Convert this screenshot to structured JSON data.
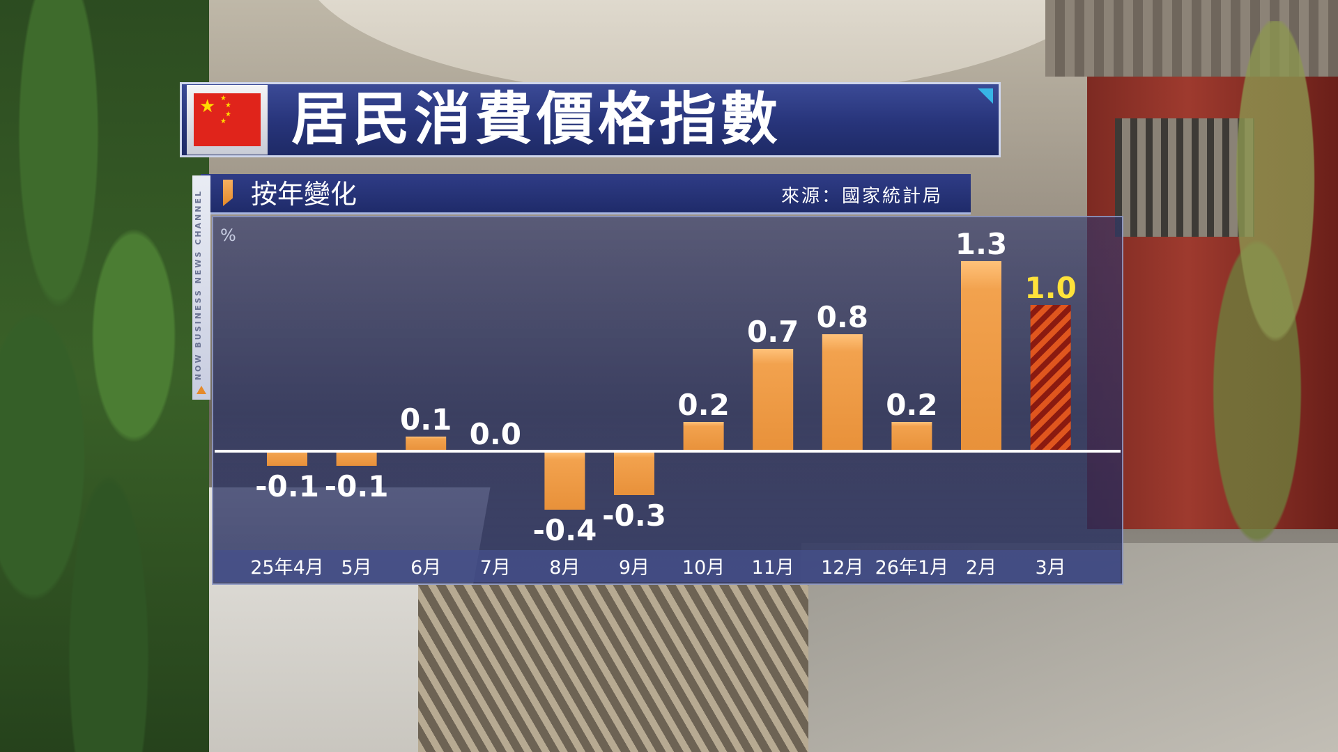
{
  "header": {
    "title": "居民消費價格指數",
    "subtitle": "按年變化",
    "source": "來源：國家統計局",
    "channel": "NOW BUSINESS NEWS CHANNEL"
  },
  "colors": {
    "bar": "#f2a24e",
    "highlight_stripe_1": "#e0561e",
    "highlight_stripe_2": "#8a1a10",
    "highlight_label": "#ffe23a",
    "panel": "#26306e"
  },
  "chart_data": {
    "type": "bar",
    "title": "居民消費價格指數",
    "subtitle": "按年變化",
    "ylabel": "%",
    "categories": [
      "25年4月",
      "5月",
      "6月",
      "7月",
      "8月",
      "9月",
      "10月",
      "11月",
      "12月",
      "26年1月",
      "2月",
      "3月"
    ],
    "values": [
      -0.1,
      -0.1,
      0.1,
      0.0,
      -0.4,
      -0.3,
      0.2,
      0.7,
      0.8,
      0.2,
      1.3,
      1.0
    ],
    "value_labels": [
      "-0.1",
      "-0.1",
      "0.1",
      "0.0",
      "-0.4",
      "-0.3",
      "0.2",
      "0.7",
      "0.8",
      "0.2",
      "1.3",
      "1.0"
    ],
    "highlight_index": 11,
    "ylim": [
      -0.6,
      1.5
    ],
    "grid": false,
    "legend": "none"
  }
}
